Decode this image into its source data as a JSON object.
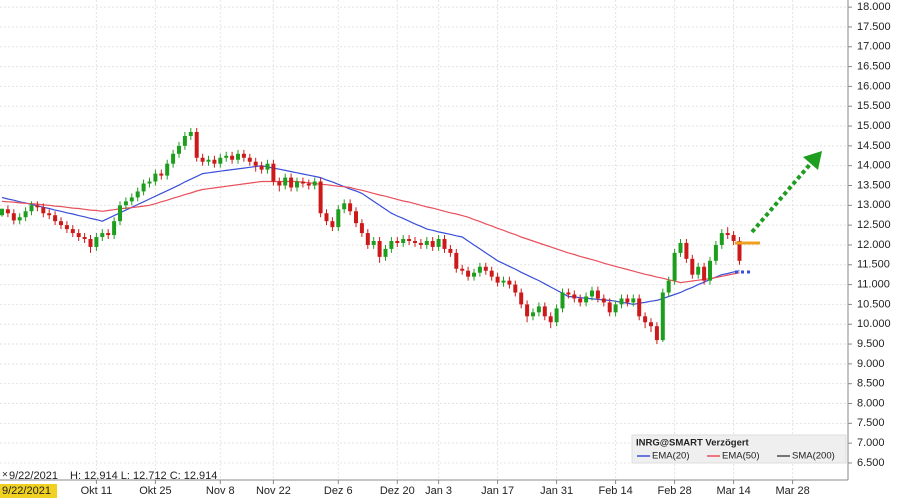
{
  "chart_data": {
    "type": "candlestick",
    "categories": [
      null,
      null,
      null,
      null,
      null,
      null,
      null,
      null,
      null,
      null,
      null,
      null,
      null,
      null,
      null,
      null,
      "Okt 11",
      null,
      null,
      null,
      null,
      null,
      null,
      null,
      null,
      null,
      "Okt 25",
      null,
      null,
      null,
      null,
      null,
      null,
      null,
      null,
      null,
      null,
      "Nov 8",
      null,
      null,
      null,
      null,
      null,
      null,
      null,
      null,
      "Nov 22",
      null,
      null,
      null,
      null,
      null,
      null,
      null,
      null,
      null,
      null,
      "Dez 6",
      null,
      null,
      null,
      null,
      null,
      null,
      null,
      null,
      null,
      "Dez 20",
      null,
      null,
      null,
      null,
      null,
      null,
      "Jan 3",
      null,
      null,
      null,
      null,
      null,
      null,
      null,
      null,
      null,
      "Jan 17",
      null,
      null,
      null,
      null,
      null,
      null,
      null,
      null,
      null,
      "Jan 31",
      null,
      null,
      null,
      null,
      null,
      null,
      null,
      null,
      null,
      "Feb 14",
      null,
      null,
      null,
      null,
      null,
      null,
      null,
      null,
      null,
      "Feb 28",
      null,
      null,
      null,
      null,
      null,
      null,
      null,
      null,
      null,
      "Mar 14",
      null,
      null,
      null,
      null,
      null,
      null,
      null,
      null,
      null,
      "Mar 28",
      null,
      null,
      null,
      null,
      null,
      null,
      null,
      null,
      null
    ],
    "open": [
      12.75,
      12.9,
      12.8,
      12.62,
      12.7,
      12.85,
      13.0,
      12.95,
      12.8,
      12.75,
      12.6,
      12.5,
      12.4,
      12.3,
      12.2,
      12.15,
      11.95,
      12.2,
      12.3,
      12.25,
      12.6,
      13.0,
      13.1,
      13.2,
      13.35,
      13.55,
      13.6,
      13.8,
      13.75,
      14.05,
      14.3,
      14.5,
      14.75,
      14.85,
      14.2,
      14.1,
      14.15,
      14.05,
      14.2,
      14.25,
      14.15,
      14.3,
      14.2,
      14.1,
      14.0,
      13.9,
      14.05,
      13.6,
      13.5,
      13.7,
      13.45,
      13.6,
      13.55,
      13.5,
      13.6,
      12.8,
      12.6,
      12.45,
      12.9,
      13.05,
      12.85,
      12.55,
      12.3,
      12.0,
      12.1,
      11.7,
      11.9,
      12.1,
      12.05,
      12.15,
      12.1,
      12.05,
      12.0,
      12.1,
      11.95,
      12.15,
      11.9,
      11.8,
      11.4,
      11.35,
      11.2,
      11.3,
      11.45,
      11.35,
      11.2,
      11.05,
      11.1,
      11.0,
      10.8,
      10.5,
      10.2,
      10.3,
      10.45,
      10.2,
      10.05,
      10.4,
      10.8,
      10.75,
      10.65,
      10.55,
      10.7,
      10.85,
      10.65,
      10.55,
      10.3,
      10.5,
      10.65,
      10.55,
      10.65,
      10.2,
      10.05,
      9.95,
      9.6,
      10.8,
      11.1,
      11.8,
      12.05,
      11.65,
      11.25,
      11.45,
      11.1,
      11.6,
      12.0,
      12.3,
      12.25,
      12.1,
      null,
      null,
      null,
      null,
      null,
      null,
      null,
      null,
      null,
      null,
      null,
      null,
      null,
      null,
      null,
      null,
      null,
      null
    ],
    "high": [
      12.914,
      13.0,
      12.9,
      12.8,
      12.95,
      13.1,
      13.1,
      13.05,
      12.9,
      12.85,
      12.7,
      12.6,
      12.5,
      12.4,
      12.3,
      12.25,
      12.3,
      12.4,
      12.4,
      12.7,
      13.1,
      13.2,
      13.3,
      13.45,
      13.65,
      13.7,
      13.9,
      13.9,
      14.15,
      14.4,
      14.6,
      14.85,
      14.95,
      14.95,
      14.3,
      14.25,
      14.25,
      14.3,
      14.35,
      14.35,
      14.4,
      14.4,
      14.3,
      14.2,
      14.1,
      14.15,
      14.15,
      13.7,
      13.8,
      13.8,
      13.7,
      13.7,
      13.65,
      13.7,
      13.7,
      12.9,
      12.7,
      13.0,
      13.15,
      13.15,
      12.95,
      12.65,
      12.4,
      12.2,
      12.2,
      12.0,
      12.2,
      12.2,
      12.25,
      12.25,
      12.2,
      12.15,
      12.2,
      12.2,
      12.25,
      12.25,
      12.0,
      11.9,
      11.5,
      11.45,
      11.4,
      11.55,
      11.55,
      11.45,
      11.3,
      11.2,
      11.2,
      11.1,
      10.9,
      10.6,
      10.4,
      10.55,
      10.55,
      10.3,
      10.5,
      10.9,
      10.9,
      10.85,
      10.75,
      10.8,
      10.95,
      10.95,
      10.75,
      10.65,
      10.6,
      10.75,
      10.75,
      10.75,
      10.75,
      10.3,
      10.15,
      10.05,
      10.9,
      11.2,
      11.9,
      12.15,
      12.15,
      11.75,
      11.55,
      11.55,
      11.7,
      12.1,
      12.4,
      12.45,
      12.35,
      12.2,
      null,
      null,
      null,
      null,
      null,
      null,
      null,
      null,
      null,
      null,
      null,
      null,
      null,
      null,
      null,
      null,
      null,
      null
    ],
    "low": [
      12.712,
      12.7,
      12.52,
      12.52,
      12.6,
      12.75,
      12.85,
      12.7,
      12.65,
      12.5,
      12.4,
      12.3,
      12.2,
      12.1,
      12.05,
      11.8,
      11.85,
      12.1,
      12.15,
      12.15,
      12.5,
      12.9,
      13.0,
      13.1,
      13.25,
      13.45,
      13.5,
      13.65,
      13.65,
      13.95,
      14.2,
      14.4,
      14.65,
      14.1,
      14.0,
      14.0,
      13.95,
      13.95,
      14.1,
      14.05,
      14.05,
      14.1,
      14.0,
      13.85,
      13.8,
      13.8,
      13.5,
      13.35,
      13.4,
      13.35,
      13.35,
      13.45,
      13.4,
      13.4,
      12.7,
      12.5,
      12.35,
      12.35,
      12.8,
      12.75,
      12.45,
      12.2,
      11.9,
      11.9,
      11.55,
      11.6,
      11.8,
      11.95,
      11.95,
      12.0,
      11.95,
      11.9,
      11.9,
      11.85,
      11.85,
      11.8,
      11.7,
      11.3,
      11.25,
      11.1,
      11.1,
      11.2,
      11.25,
      11.1,
      10.95,
      10.95,
      10.9,
      10.7,
      10.4,
      10.05,
      10.1,
      10.2,
      10.1,
      9.9,
      9.95,
      10.3,
      10.65,
      10.55,
      10.45,
      10.45,
      10.6,
      10.55,
      10.45,
      10.2,
      10.2,
      10.4,
      10.45,
      10.45,
      10.1,
      9.9,
      9.8,
      9.5,
      9.55,
      10.7,
      11.0,
      11.7,
      11.55,
      11.15,
      11.15,
      11.0,
      11.0,
      11.5,
      11.9,
      12.15,
      12.0,
      11.5,
      null,
      null,
      null,
      null,
      null,
      null,
      null,
      null,
      null,
      null,
      null,
      null,
      null,
      null,
      null,
      null,
      null,
      null
    ],
    "close": [
      12.914,
      12.8,
      12.62,
      12.7,
      12.85,
      13.0,
      12.95,
      12.8,
      12.75,
      12.6,
      12.5,
      12.4,
      12.3,
      12.2,
      12.15,
      11.95,
      12.2,
      12.3,
      12.25,
      12.6,
      13.0,
      13.1,
      13.2,
      13.35,
      13.55,
      13.6,
      13.8,
      13.75,
      14.05,
      14.3,
      14.5,
      14.75,
      14.85,
      14.2,
      14.1,
      14.15,
      14.05,
      14.2,
      14.25,
      14.15,
      14.3,
      14.2,
      14.1,
      14.0,
      13.9,
      14.05,
      13.6,
      13.5,
      13.7,
      13.45,
      13.6,
      13.55,
      13.5,
      13.6,
      12.8,
      12.6,
      12.45,
      12.9,
      13.05,
      12.85,
      12.55,
      12.3,
      12.0,
      12.1,
      11.7,
      11.9,
      12.1,
      12.05,
      12.15,
      12.1,
      12.05,
      12.0,
      12.1,
      11.95,
      12.15,
      11.9,
      11.8,
      11.4,
      11.35,
      11.2,
      11.3,
      11.45,
      11.35,
      11.2,
      11.05,
      11.1,
      11.0,
      10.8,
      10.5,
      10.2,
      10.3,
      10.45,
      10.2,
      10.05,
      10.4,
      10.8,
      10.75,
      10.65,
      10.55,
      10.7,
      10.85,
      10.65,
      10.55,
      10.3,
      10.5,
      10.65,
      10.55,
      10.65,
      10.2,
      10.05,
      9.95,
      9.6,
      10.8,
      11.1,
      11.8,
      12.05,
      11.65,
      11.25,
      11.45,
      11.1,
      11.6,
      12.0,
      12.3,
      12.25,
      12.1,
      11.6,
      null,
      null,
      null,
      null,
      null,
      null,
      null,
      null,
      null,
      null,
      null,
      null,
      null,
      null,
      null,
      null,
      null,
      null
    ],
    "up_color": "#1e9e1e",
    "down_color": "#cc1a1a",
    "series": [
      {
        "name": "EMA(20)",
        "color": "#3a4fd8",
        "values": [
          13.2,
          13.16,
          13.13,
          13.09,
          13.06,
          13.02,
          12.99,
          12.95,
          12.92,
          12.88,
          12.85,
          12.81,
          12.78,
          12.74,
          12.71,
          12.67,
          12.64,
          12.6,
          12.67,
          12.74,
          12.81,
          12.88,
          12.95,
          13.02,
          13.09,
          13.16,
          13.23,
          13.3,
          13.37,
          13.44,
          13.51,
          13.59,
          13.66,
          13.73,
          13.8,
          13.82,
          13.84,
          13.86,
          13.88,
          13.9,
          13.92,
          13.94,
          13.96,
          13.98,
          14.0,
          13.97,
          13.94,
          13.91,
          13.88,
          13.85,
          13.82,
          13.79,
          13.76,
          13.73,
          13.7,
          13.64,
          13.59,
          13.53,
          13.47,
          13.41,
          13.36,
          13.3,
          13.2,
          13.1,
          13.0,
          12.9,
          12.8,
          12.73,
          12.67,
          12.6,
          12.53,
          12.47,
          12.4,
          12.37,
          12.33,
          12.3,
          12.27,
          12.23,
          12.2,
          12.1,
          12.0,
          11.9,
          11.8,
          11.7,
          11.6,
          11.53,
          11.46,
          11.39,
          11.31,
          11.24,
          11.17,
          11.1,
          11.02,
          10.94,
          10.86,
          10.78,
          10.7,
          10.69,
          10.67,
          10.66,
          10.64,
          10.63,
          10.61,
          10.6,
          10.58,
          10.55,
          10.53,
          10.5,
          10.53,
          10.55,
          10.58,
          10.6,
          10.65,
          10.7,
          10.75,
          10.8,
          10.87,
          10.93,
          11.0,
          11.06,
          11.13,
          11.19,
          11.25,
          11.28,
          11.32,
          11.35,
          null,
          null,
          null,
          null,
          null,
          null,
          null,
          null,
          null,
          null,
          null,
          null,
          null,
          null,
          null,
          null,
          null,
          null
        ]
      },
      {
        "name": "EMA(50)",
        "color": "#e8505c",
        "values": [
          13.1,
          13.09,
          13.08,
          13.06,
          13.05,
          13.04,
          13.03,
          13.01,
          13.0,
          12.98,
          12.97,
          12.95,
          12.93,
          12.92,
          12.9,
          12.88,
          12.87,
          12.85,
          12.87,
          12.89,
          12.91,
          12.93,
          12.94,
          12.96,
          12.98,
          13.0,
          13.04,
          13.09,
          13.13,
          13.18,
          13.22,
          13.27,
          13.31,
          13.36,
          13.4,
          13.42,
          13.44,
          13.46,
          13.48,
          13.5,
          13.52,
          13.54,
          13.56,
          13.58,
          13.6,
          13.6,
          13.6,
          13.6,
          13.6,
          13.6,
          13.6,
          13.58,
          13.57,
          13.55,
          13.53,
          13.52,
          13.5,
          13.48,
          13.47,
          13.45,
          13.41,
          13.38,
          13.34,
          13.3,
          13.26,
          13.23,
          13.19,
          13.15,
          13.11,
          13.08,
          13.04,
          13.0,
          12.96,
          12.93,
          12.89,
          12.85,
          12.81,
          12.78,
          12.74,
          12.7,
          12.64,
          12.59,
          12.53,
          12.48,
          12.42,
          12.37,
          12.31,
          12.26,
          12.2,
          12.15,
          12.1,
          12.05,
          12.0,
          11.95,
          11.9,
          11.85,
          11.8,
          11.76,
          11.71,
          11.67,
          11.63,
          11.59,
          11.54,
          11.5,
          11.46,
          11.42,
          11.38,
          11.34,
          11.3,
          11.26,
          11.23,
          11.19,
          11.16,
          11.12,
          11.09,
          11.05,
          11.07,
          11.09,
          11.11,
          11.13,
          11.15,
          11.18,
          11.21,
          11.24,
          11.27,
          11.3,
          null,
          null,
          null,
          null,
          null,
          null,
          null,
          null,
          null,
          null,
          null,
          null,
          null,
          null,
          null,
          null,
          null,
          null
        ]
      }
    ],
    "extra_legend": [
      {
        "name": "SMA(200)",
        "color": "#4a4a4a"
      }
    ],
    "legend": {
      "title": "INRG@SMART Verzögert",
      "corner": "lower-right"
    },
    "cursor": {
      "date": "9/22/2021",
      "ohlc": "H: 12.914 L: 12.712 C: 12.914"
    },
    "ylim": [
      6.07,
      18.18
    ],
    "yticks": [
      {
        "value": 6.5,
        "label": "6.500"
      },
      {
        "value": 7,
        "label": "7.000"
      },
      {
        "value": 7.5,
        "label": "7.500"
      },
      {
        "value": 8,
        "label": "8.000"
      },
      {
        "value": 8.5,
        "label": "8.500"
      },
      {
        "value": 9,
        "label": "9.000"
      },
      {
        "value": 9.5,
        "label": "9.500"
      },
      {
        "value": 10,
        "label": "10.000"
      },
      {
        "value": 10.5,
        "label": "10.500"
      },
      {
        "value": 11,
        "label": "11.000"
      },
      {
        "value": 11.5,
        "label": "11.500"
      },
      {
        "value": 12,
        "label": "12.000"
      },
      {
        "value": 12.5,
        "label": "12.500"
      },
      {
        "value": 13,
        "label": "13.000"
      },
      {
        "value": 13.5,
        "label": "13.500"
      },
      {
        "value": 14,
        "label": "14.000"
      },
      {
        "value": 14.5,
        "label": "14.500"
      },
      {
        "value": 15,
        "label": "15.000"
      },
      {
        "value": 15.5,
        "label": "15.500"
      },
      {
        "value": 16,
        "label": "16.000"
      },
      {
        "value": 16.5,
        "label": "16.500"
      },
      {
        "value": 17,
        "label": "17.000"
      },
      {
        "value": 17.5,
        "label": "17.500"
      },
      {
        "value": 18,
        "label": "18.000"
      }
    ],
    "grid": true,
    "y_axis_side": "right"
  }
}
